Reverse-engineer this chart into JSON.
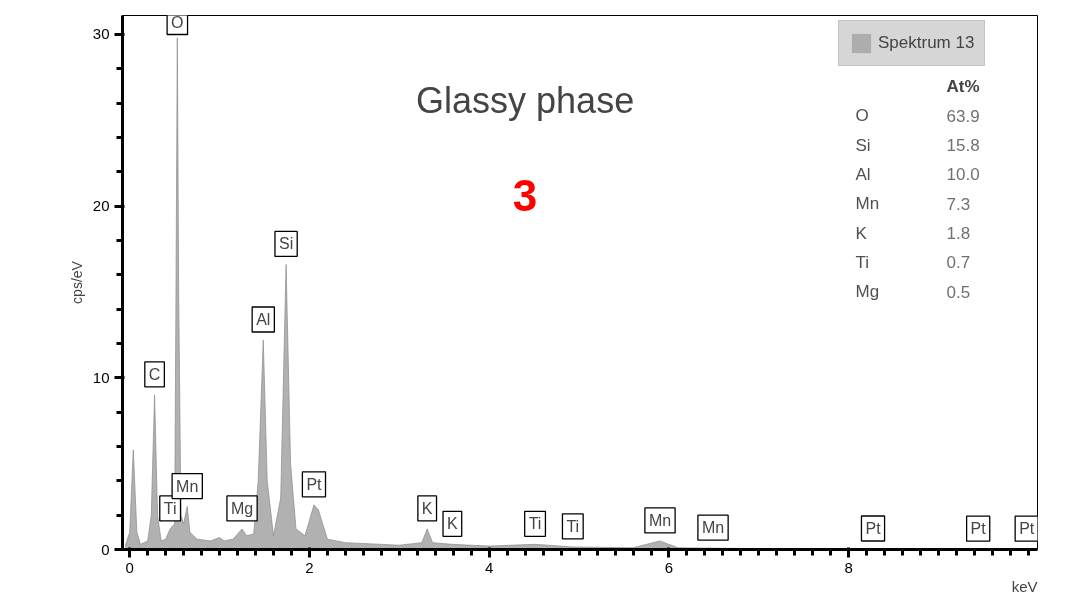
{
  "chart_data": {
    "type": "area",
    "title": "Glassy phase",
    "subtitle": "3",
    "xlabel": "keV",
    "ylabel": "cps/eV",
    "x": [
      -0.05,
      0.0,
      0.04,
      0.08,
      0.12,
      0.2,
      0.24,
      0.277,
      0.31,
      0.35,
      0.4,
      0.45,
      0.5,
      0.515,
      0.53,
      0.545,
      0.57,
      0.6,
      0.64,
      0.67,
      0.75,
      0.9,
      1.0,
      1.05,
      1.15,
      1.25,
      1.3,
      1.38,
      1.43,
      1.486,
      1.53,
      1.6,
      1.68,
      1.74,
      1.79,
      1.85,
      1.95,
      2.05,
      2.1,
      2.2,
      2.4,
      3.0,
      3.25,
      3.31,
      3.37,
      3.59,
      4.0,
      4.51,
      4.93,
      5.6,
      5.9,
      6.1,
      7.0,
      8.0,
      10.0
    ],
    "series": [
      {
        "name": "Spektrum 13",
        "color": "#a9a9a9",
        "values": [
          0.2,
          1.0,
          5.8,
          1.0,
          0.3,
          0.5,
          2.0,
          9.0,
          2.0,
          0.5,
          0.6,
          1.2,
          1.5,
          15,
          29.8,
          15,
          2.0,
          1.5,
          2.5,
          1.0,
          0.6,
          0.5,
          0.7,
          0.5,
          0.6,
          1.2,
          0.8,
          0.9,
          4,
          12.2,
          4,
          0.8,
          3,
          16.6,
          5,
          1.2,
          0.8,
          2.6,
          2.3,
          0.6,
          0.4,
          0.25,
          0.4,
          1.2,
          0.4,
          0.3,
          0.2,
          0.3,
          0.15,
          0.1,
          0.5,
          0.1,
          0.05,
          0.03,
          0.02
        ]
      }
    ],
    "xlim": [
      -0.08,
      10.1
    ],
    "ylim": [
      0,
      31.1
    ],
    "xticks": [
      0,
      2,
      4,
      6,
      8
    ],
    "yticks": [
      0,
      10,
      20,
      30
    ],
    "grid": false,
    "legend": "top right",
    "annotations": [
      {
        "text": "O",
        "x": 0.53,
        "y": 29.8
      },
      {
        "text": "C",
        "x": 0.277,
        "y": 9.0
      },
      {
        "text": "Ti",
        "x": 0.45,
        "y": 1.2
      },
      {
        "text": "Mn",
        "x": 0.64,
        "y": 2.5
      },
      {
        "text": "Mg",
        "x": 1.25,
        "y": 1.2
      },
      {
        "text": "Al",
        "x": 1.486,
        "y": 12.2
      },
      {
        "text": "Si",
        "x": 1.74,
        "y": 16.6
      },
      {
        "text": "Pt",
        "x": 2.05,
        "y": 2.6
      },
      {
        "text": "K",
        "x": 3.31,
        "y": 1.2
      },
      {
        "text": "K",
        "x": 3.59,
        "y": 0.3
      },
      {
        "text": "Ti",
        "x": 4.51,
        "y": 0.3
      },
      {
        "text": "Ti",
        "x": 4.93,
        "y": 0.15
      },
      {
        "text": "Mn",
        "x": 5.9,
        "y": 0.5
      },
      {
        "text": "Mn",
        "x": 6.49,
        "y": 0.08
      },
      {
        "text": "Pt",
        "x": 8.27,
        "y": 0.03
      },
      {
        "text": "Pt",
        "x": 9.44,
        "y": 0.02
      },
      {
        "text": "Pt",
        "x": 9.98,
        "y": 0.02
      },
      "At%",
      "O",
      "63.9",
      "Si",
      "15.8",
      "Al",
      "10.0",
      "Mn",
      "7.3",
      "K",
      "1.8",
      "Ti",
      "0.7",
      "Mg",
      "0.5"
    ]
  }
}
